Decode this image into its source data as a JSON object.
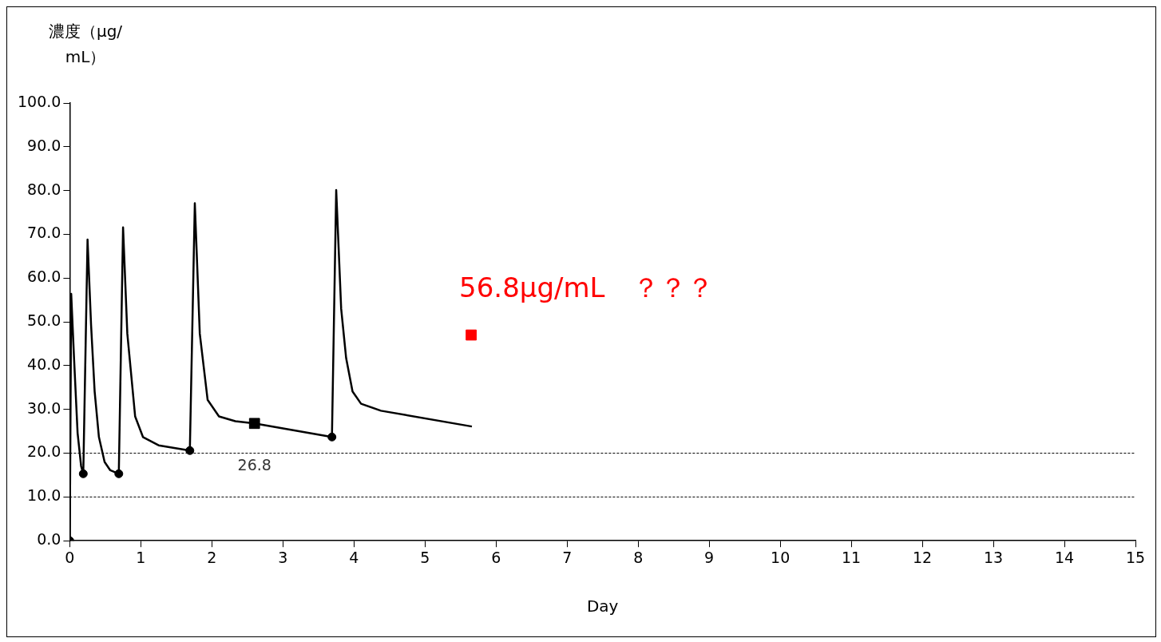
{
  "chart_data": {
    "type": "line",
    "xlabel": "Day",
    "ylabel": "濃度（μg/mL）",
    "xlim": [
      0,
      15
    ],
    "xticks": [
      0,
      1,
      2,
      3,
      4,
      5,
      6,
      7,
      8,
      9,
      10,
      11,
      12,
      13,
      14,
      15
    ],
    "ylim": [
      0,
      100
    ],
    "yticks": [
      {
        "value": 0,
        "label": "0.0"
      },
      {
        "value": 10,
        "label": "10.0"
      },
      {
        "value": 20,
        "label": "20.0"
      },
      {
        "value": 30,
        "label": "30.0"
      },
      {
        "value": 40,
        "label": "40.0"
      },
      {
        "value": 50,
        "label": "50.0"
      },
      {
        "value": 60,
        "label": "60.0"
      },
      {
        "value": 70,
        "label": "70.0"
      },
      {
        "value": 80,
        "label": "80.0"
      },
      {
        "value": 90,
        "label": "90.0"
      },
      {
        "value": 100,
        "label": "100.0"
      }
    ],
    "grid": false,
    "legend": false,
    "series": [
      {
        "color": "#000000",
        "marker": "none",
        "x": [
          0,
          0.02,
          0.06,
          0.11,
          0.16,
          0.19,
          0.25,
          0.3,
          0.35,
          0.41,
          0.49,
          0.57,
          0.69,
          0.75,
          0.81,
          0.92,
          1.03,
          1.25,
          1.69,
          1.76,
          1.83,
          1.94,
          2.1,
          2.33,
          2.6,
          3.69,
          3.75,
          3.82,
          3.89,
          3.98,
          4.1,
          4.38,
          5.66
        ],
        "values": [
          0,
          56.4,
          41.7,
          24.6,
          17,
          15.3,
          68.8,
          49.2,
          34.1,
          23.7,
          18,
          16.1,
          15.3,
          71.6,
          47.3,
          28.4,
          23.7,
          21.8,
          20.6,
          77.1,
          47.3,
          32.2,
          28.4,
          27.3,
          26.8,
          23.7,
          80.1,
          53,
          41.7,
          34.1,
          31.3,
          29.7,
          26.1
        ]
      },
      {
        "type": "scatter",
        "color": "#000000",
        "marker": "circle",
        "x": [
          0,
          0.19,
          0.69,
          1.69,
          3.69
        ],
        "values": [
          0,
          15.3,
          15.3,
          20.6,
          23.7
        ]
      },
      {
        "type": "scatter",
        "color": "#000000",
        "marker": "square",
        "x": [
          2.6
        ],
        "values": [
          26.8
        ],
        "value_labels": [
          "26.8"
        ]
      },
      {
        "type": "scatter",
        "color": "#ff0000",
        "marker": "square",
        "x": [
          5.65
        ],
        "values": [
          47
        ]
      }
    ],
    "ref_lines": [
      {
        "axis": "y",
        "value": 20,
        "line_style": "dashed",
        "color": "#000000"
      },
      {
        "axis": "y",
        "value": 10,
        "line_style": "dashed",
        "color": "#000000"
      }
    ],
    "annotations": [
      {
        "text": "56.8μg/mL　？？？",
        "x": 5.65,
        "y": 47
      }
    ]
  }
}
